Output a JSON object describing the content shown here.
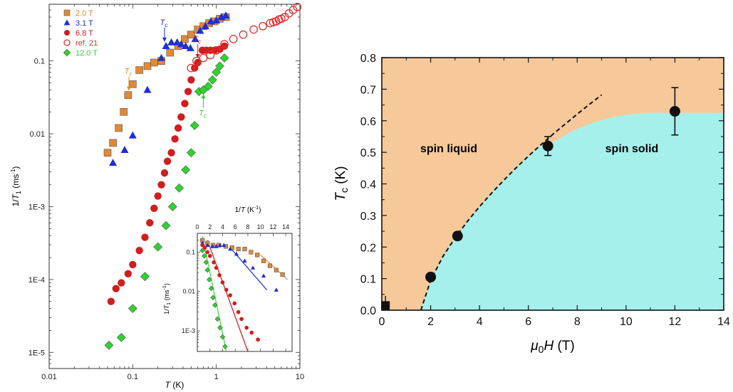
{
  "colors": {
    "s2": "#e08a36",
    "s3": "#1f2fd6",
    "s6": "#d21e1e",
    "sref": "#e03030",
    "s12": "#2ed42e",
    "liquid": "#f7c99a",
    "solid": "#a6f0ec",
    "fit_orange": "#ee9040",
    "fit_blue": "#2a3ad8",
    "fit_red": "#e02020",
    "fit_green": "#40dd40"
  },
  "chart_data": [
    {
      "type": "scatter",
      "panel": "left",
      "xlabel": {
        "pre": "",
        "italic": "T",
        "post": " (K)"
      },
      "ylabel": {
        "pre": "1/",
        "italic": "T",
        "sub": "1",
        "post": " (ms",
        "sup": "-1",
        "end": ")"
      },
      "xscale": "log",
      "yscale": "log",
      "xlim": [
        0.01,
        10
      ],
      "ylim": [
        6e-06,
        0.6
      ],
      "x_ticks": [
        {
          "v": 0.01,
          "label": "0.01"
        },
        {
          "v": 0.1,
          "label": "0.1"
        },
        {
          "v": 1,
          "label": "1"
        },
        {
          "v": 10,
          "label": "10"
        }
      ],
      "y_ticks": [
        {
          "v": 1e-05,
          "label": "1E-5"
        },
        {
          "v": 0.0001,
          "label": "1E-4"
        },
        {
          "v": 0.001,
          "label": "1E-3"
        },
        {
          "v": 0.01,
          "label": "0.01"
        },
        {
          "v": 0.1,
          "label": "0.1"
        }
      ],
      "legend_position": "top-left",
      "series": [
        {
          "name": "2.0 T",
          "marker": "square",
          "color": "#e08a36",
          "filled": true,
          "x": [
            0.05,
            0.058,
            0.068,
            0.078,
            0.088,
            0.1,
            0.12,
            0.15,
            0.18,
            0.22,
            0.28,
            0.35,
            0.42,
            0.5,
            0.6,
            0.7,
            0.82,
            0.95,
            1.1,
            1.3
          ],
          "y": [
            0.0055,
            0.0075,
            0.012,
            0.02,
            0.034,
            0.048,
            0.075,
            0.085,
            0.095,
            0.1,
            0.13,
            0.16,
            0.2,
            0.23,
            0.27,
            0.3,
            0.33,
            0.35,
            0.38,
            0.4
          ]
        },
        {
          "name": "3.1 T",
          "marker": "triangle",
          "color": "#1f2fd6",
          "filled": true,
          "x": [
            0.058,
            0.08,
            0.1,
            0.15,
            0.22,
            0.25,
            0.29,
            0.34,
            0.38,
            0.43,
            0.49,
            0.56,
            0.64,
            0.74,
            0.86,
            1.0,
            1.15,
            1.3
          ],
          "y": [
            0.004,
            0.006,
            0.0095,
            0.04,
            0.11,
            0.16,
            0.18,
            0.18,
            0.17,
            0.16,
            0.15,
            0.2,
            0.26,
            0.3,
            0.35,
            0.36,
            0.4,
            0.42
          ]
        },
        {
          "name": "6.8 T",
          "marker": "circle",
          "color": "#d21e1e",
          "filled": true,
          "x": [
            0.055,
            0.063,
            0.073,
            0.088,
            0.1,
            0.12,
            0.14,
            0.16,
            0.18,
            0.2,
            0.22,
            0.24,
            0.26,
            0.29,
            0.32,
            0.35,
            0.38,
            0.42,
            0.46,
            0.5,
            0.55,
            0.6,
            0.68,
            0.76,
            0.85,
            0.95,
            1.1,
            1.25
          ],
          "y": [
            5e-05,
            7.5e-05,
            9e-05,
            0.00012,
            0.00016,
            0.00025,
            0.00038,
            0.0006,
            0.00095,
            0.0014,
            0.002,
            0.0029,
            0.0042,
            0.0055,
            0.0085,
            0.012,
            0.017,
            0.026,
            0.038,
            0.055,
            0.08,
            0.095,
            0.14,
            0.14,
            0.14,
            0.14,
            0.145,
            0.16
          ]
        },
        {
          "name": "ref. 21",
          "marker": "circle",
          "color": "#e03030",
          "filled": false,
          "x": [
            0.5,
            0.58,
            0.7,
            0.85,
            1.0,
            1.25,
            1.6,
            2.1,
            2.8,
            3.6,
            4.4,
            4.8,
            5.2,
            5.6,
            6.0,
            6.6,
            7.4,
            8.3,
            9.3
          ],
          "y": [
            0.08,
            0.1,
            0.11,
            0.12,
            0.14,
            0.17,
            0.2,
            0.23,
            0.27,
            0.3,
            0.33,
            0.34,
            0.35,
            0.37,
            0.38,
            0.4,
            0.45,
            0.5,
            0.55
          ]
        },
        {
          "name": "12.0 T",
          "marker": "diamond",
          "color": "#2ed42e",
          "filled": true,
          "x": [
            0.052,
            0.073,
            0.1,
            0.14,
            0.2,
            0.25,
            0.3,
            0.36,
            0.43,
            0.5,
            0.55,
            0.62,
            0.7,
            0.8,
            0.9,
            1.0,
            1.1,
            1.25
          ],
          "y": [
            1.25e-05,
            1.6e-05,
            4e-05,
            0.00011,
            0.00028,
            0.00055,
            0.001,
            0.0018,
            0.0032,
            0.0055,
            0.013,
            0.038,
            0.04,
            0.045,
            0.055,
            0.07,
            0.085,
            0.11
          ]
        }
      ],
      "annotations": [
        {
          "text": "T",
          "sub": "c",
          "series": "2.0 T",
          "x": 0.09
        },
        {
          "text": "T",
          "sub": "c",
          "series": "3.1 T",
          "x": 0.24
        },
        {
          "text": "T",
          "sub": "c",
          "series": "6.8 T",
          "x": 0.6
        },
        {
          "text": "T",
          "sub": "c",
          "series": "12.0 T",
          "x": 0.7
        }
      ],
      "inset": {
        "xlabel": {
          "pre": "1/",
          "italic": "T",
          "post": " (K",
          "sup": "-1",
          "end": ")"
        },
        "ylabel": {
          "pre": "1/",
          "italic": "T",
          "sub": "1",
          "post": " (ms",
          "sup": "-1",
          "end": ")"
        },
        "xscale": "linear",
        "yscale": "log",
        "xlim": [
          0,
          15
        ],
        "ylim": [
          0.0003,
          0.3
        ],
        "x_ticks": [
          0,
          2,
          4,
          6,
          8,
          10,
          12,
          14
        ],
        "y_ticks": [
          {
            "v": 0.1,
            "label": "0.1"
          },
          {
            "v": 0.01,
            "label": "0.01"
          },
          {
            "v": 0.001,
            "label": "1E-3"
          }
        ],
        "series": [
          {
            "name": "2.0 T",
            "x": [
              0.8,
              1.6,
              2.5,
              3.4,
              4.5,
              5.5,
              6.5,
              7.5,
              8.5,
              9.5,
              10.5,
              11.5,
              12.5,
              13.5
            ],
            "y": [
              0.2,
              0.17,
              0.15,
              0.15,
              0.14,
              0.13,
              0.12,
              0.12,
              0.1,
              0.085,
              0.06,
              0.045,
              0.035,
              0.027
            ]
          },
          {
            "name": "3.1 T",
            "x": [
              0.8,
              1.6,
              2.4,
              3.0,
              3.6,
              4.2,
              5.2,
              6.2,
              7.5,
              8.8,
              10.5,
              12.5
            ],
            "y": [
              0.17,
              0.15,
              0.14,
              0.14,
              0.15,
              0.15,
              0.12,
              0.09,
              0.06,
              0.04,
              0.025,
              0.011
            ]
          },
          {
            "name": "6.8 T",
            "x": [
              0.8,
              1.2,
              1.6,
              2.0,
              2.6,
              3.0,
              3.5,
              4.0,
              4.6,
              5.2,
              5.9,
              6.5,
              7.0,
              7.8,
              8.6,
              9.6
            ],
            "y": [
              0.15,
              0.13,
              0.1,
              0.08,
              0.055,
              0.04,
              0.026,
              0.017,
              0.011,
              0.008,
              0.005,
              0.003,
              0.002,
              0.0012,
              0.0009,
              0.0006
            ]
          },
          {
            "name": "12.0 T",
            "x": [
              0.8,
              1.1,
              1.4,
              1.6,
              1.9,
              2.2,
              2.5,
              2.8,
              3.2,
              3.6,
              4.0,
              4.4
            ],
            "y": [
              0.11,
              0.08,
              0.055,
              0.035,
              0.02,
              0.012,
              0.007,
              0.0045,
              0.002,
              0.0012,
              0.0007,
              0.0004
            ]
          }
        ],
        "fits": [
          {
            "series": "2.0 T",
            "color": "#ee9040",
            "x": [
              10.0,
              14.3
            ],
            "y": [
              0.085,
              0.02
            ]
          },
          {
            "series": "3.1 T",
            "color": "#2a3ad8",
            "x": [
              5.2,
              11.0
            ],
            "y": [
              0.13,
              0.011
            ]
          },
          {
            "series": "6.8 T",
            "color": "#e02020",
            "x": [
              1.6,
              8.0
            ],
            "y": [
              0.2,
              0.0003
            ]
          },
          {
            "series": "12.0 T",
            "color": "#40dd40",
            "x": [
              0.8,
              4.6
            ],
            "y": [
              0.25,
              0.0003
            ]
          }
        ]
      }
    },
    {
      "type": "scatter",
      "panel": "right",
      "xlabel": {
        "italic": "μ",
        "sub": "0",
        "italic2": "H",
        "post": " (T)"
      },
      "ylabel": {
        "italic": "T",
        "sub": "c",
        "post": " (K)"
      },
      "xlim": [
        0,
        14
      ],
      "ylim": [
        0,
        0.8
      ],
      "x_ticks": [
        0,
        2,
        4,
        6,
        8,
        10,
        12,
        14
      ],
      "y_ticks": [
        0.0,
        0.1,
        0.2,
        0.3,
        0.4,
        0.5,
        0.6,
        0.7,
        0.8
      ],
      "regions": [
        {
          "label": "spin liquid",
          "color": "#f7c99a",
          "label_at": [
            4.0,
            0.52
          ]
        },
        {
          "label": "spin solid",
          "color": "#a6f0ec",
          "label_at": [
            11.0,
            0.52
          ]
        }
      ],
      "points": [
        {
          "x": 2.0,
          "y": 0.105,
          "err": 0
        },
        {
          "x": 3.1,
          "y": 0.235,
          "err": 0.01
        },
        {
          "x": 6.8,
          "y": 0.52,
          "err": 0.03
        },
        {
          "x": 12.0,
          "y": 0.63,
          "err": 0.075
        }
      ],
      "square_point": {
        "x": 0.15,
        "y": 0.015,
        "err": 0.03
      },
      "dashed_fit": {
        "x": [
          1.6,
          2.0,
          2.5,
          3.0,
          3.5,
          4.0,
          4.5,
          5.0,
          5.5,
          6.0,
          6.5,
          7.0,
          7.5,
          8.0,
          8.5,
          9.0
        ],
        "y": [
          0.0,
          0.095,
          0.17,
          0.229,
          0.281,
          0.328,
          0.371,
          0.412,
          0.451,
          0.488,
          0.523,
          0.557,
          0.589,
          0.621,
          0.652,
          0.682
        ]
      }
    }
  ]
}
